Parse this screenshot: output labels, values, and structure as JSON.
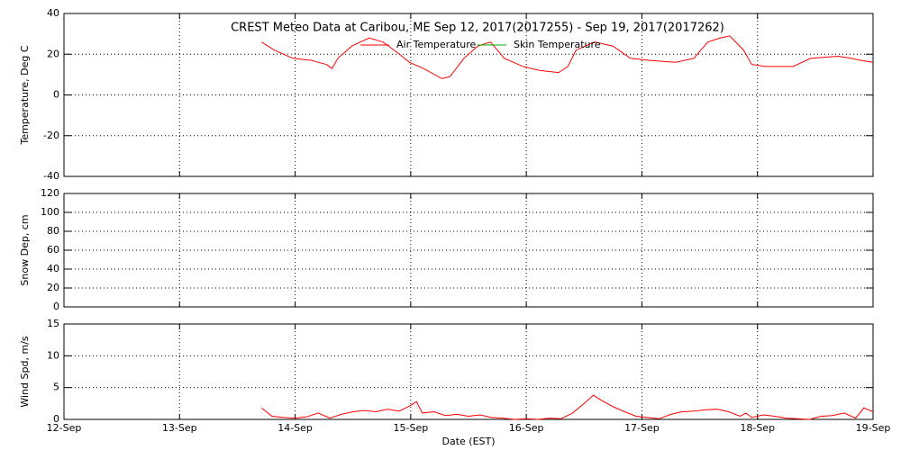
{
  "chart_data": [
    {
      "type": "line",
      "title": "CREST Meteo Data at Caribou, ME   Sep 12, 2017(2017255) - Sep 19, 2017(2017262)",
      "ylabel": "Temperature, Deg C",
      "ylim": [
        -40,
        40
      ],
      "yticks": [
        -40,
        -20,
        0,
        20,
        40
      ],
      "xlim": [
        12,
        19
      ],
      "xticks": [
        12,
        13,
        14,
        15,
        16,
        17,
        18,
        19
      ],
      "grid": true,
      "x": [
        13.71,
        13.82,
        13.98,
        14.14,
        14.2,
        14.27,
        14.32,
        14.37,
        14.49,
        14.64,
        14.76,
        14.88,
        14.99,
        15.11,
        15.27,
        15.34,
        15.46,
        15.58,
        15.69,
        15.81,
        15.97,
        16.12,
        16.28,
        16.36,
        16.43,
        16.59,
        16.75,
        16.9,
        17.06,
        17.29,
        17.45,
        17.57,
        17.68,
        17.76,
        17.88,
        17.95,
        18.07,
        18.31,
        18.46,
        18.7,
        18.81,
        18.89,
        19.0
      ],
      "series": [
        {
          "name": "Air Temperature",
          "color": "#ff0000",
          "values": [
            26,
            22,
            18,
            17,
            16,
            15,
            13,
            18,
            24,
            28,
            26,
            21,
            16,
            13,
            8,
            9,
            18,
            24,
            26,
            18,
            14,
            12,
            11,
            14,
            22,
            26,
            24,
            18,
            17,
            16,
            18,
            26,
            28,
            29,
            22,
            15,
            14,
            14,
            18,
            19,
            18,
            17,
            16
          ]
        },
        {
          "name": "Skin Temperature",
          "color": "#00b000",
          "values": [
            null,
            null,
            null,
            null,
            null,
            null,
            null,
            null,
            null,
            null,
            null,
            null,
            null,
            null,
            null,
            null,
            null,
            null,
            null,
            null,
            null,
            null,
            null,
            null,
            null,
            null,
            null,
            null,
            null,
            null,
            null,
            null,
            null,
            null,
            null,
            null,
            null,
            null,
            null,
            null,
            null,
            null,
            null
          ]
        }
      ]
    },
    {
      "type": "line",
      "ylabel": "Snow Dep, cm",
      "ylim": [
        0,
        120
      ],
      "yticks": [
        0,
        20,
        40,
        60,
        80,
        100,
        120
      ],
      "xlim": [
        12,
        19
      ],
      "xticks": [
        12,
        13,
        14,
        15,
        16,
        17,
        18,
        19
      ],
      "grid": true,
      "x": [],
      "series": []
    },
    {
      "type": "line",
      "ylabel": "Wind Spd, m/s",
      "xlabel": "Date (EST)",
      "ylim": [
        0,
        15
      ],
      "yticks": [
        0,
        5,
        10,
        15
      ],
      "xlim": [
        12,
        19
      ],
      "xticks": [
        {
          "value": 12,
          "label": "12-Sep"
        },
        {
          "value": 13,
          "label": "13-Sep"
        },
        {
          "value": 14,
          "label": "14-Sep"
        },
        {
          "value": 15,
          "label": "15-Sep"
        },
        {
          "value": 16,
          "label": "16-Sep"
        },
        {
          "value": 17,
          "label": "17-Sep"
        },
        {
          "value": 18,
          "label": "18-Sep"
        },
        {
          "value": 19,
          "label": "19-Sep"
        }
      ],
      "grid": true,
      "x": [
        13.71,
        13.8,
        13.9,
        14.0,
        14.1,
        14.2,
        14.3,
        14.4,
        14.5,
        14.6,
        14.7,
        14.8,
        14.9,
        15.0,
        15.05,
        15.1,
        15.2,
        15.3,
        15.4,
        15.5,
        15.6,
        15.7,
        15.8,
        15.9,
        16.0,
        16.1,
        16.2,
        16.3,
        16.4,
        16.5,
        16.58,
        16.65,
        16.75,
        16.85,
        16.95,
        17.05,
        17.15,
        17.25,
        17.35,
        17.45,
        17.55,
        17.65,
        17.75,
        17.85,
        17.9,
        17.95,
        18.05,
        18.15,
        18.25,
        18.35,
        18.45,
        18.55,
        18.65,
        18.75,
        18.85,
        18.92,
        19.0
      ],
      "series": [
        {
          "color": "#ff0000",
          "values": [
            1.8,
            0.5,
            0.3,
            0.2,
            0.4,
            1,
            0.2,
            0.8,
            1.2,
            1.4,
            1.2,
            1.6,
            1.3,
            2.2,
            2.8,
            1,
            1.2,
            0.6,
            0.8,
            0.5,
            0.7,
            0.3,
            0.2,
            0,
            0.1,
            0,
            0.2,
            0.1,
            1,
            2.5,
            3.8,
            3,
            2,
            1.2,
            0.5,
            0.3,
            0.1,
            0.8,
            1.2,
            1.3,
            1.5,
            1.6,
            1.2,
            0.5,
            1,
            0.3,
            0.7,
            0.5,
            0.2,
            0.1,
            0,
            0.5,
            0.6,
            1,
            0.2,
            1.8,
            1.2
          ]
        }
      ]
    }
  ]
}
